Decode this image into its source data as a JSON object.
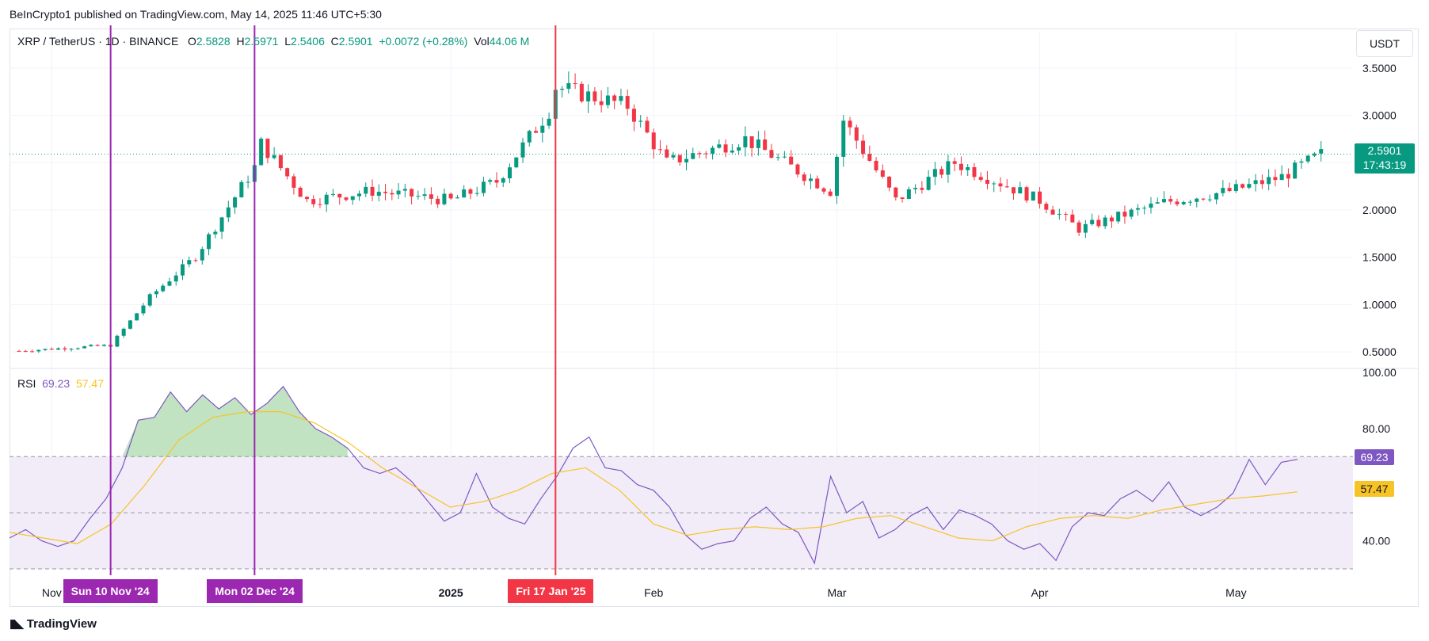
{
  "header": {
    "published_note": "BeInCrypto1 published on TradingView.com, May 14, 2025 11:46 UTC+5:30"
  },
  "legend": {
    "symbol": "XRP / TetherUS · 1D · BINANCE",
    "open_label": "O",
    "open": "2.5828",
    "high_label": "H",
    "high": "2.5971",
    "low_label": "L",
    "low": "2.5406",
    "close_label": "C",
    "close": "2.5901",
    "change": "+0.0072 (+0.28%)",
    "vol_label": "Vol",
    "vol": "44.06 M"
  },
  "currency_button": "USDT",
  "price_tag": {
    "price": "2.5901",
    "countdown": "17:43:19"
  },
  "rsi_legend": {
    "label": "RSI",
    "rsi": "69.23",
    "ma": "57.47"
  },
  "rsi_tags": {
    "rsi": "69.23",
    "ma": "57.47"
  },
  "markers": [
    {
      "label": "Sun 10 Nov '24",
      "color": "#9c27b0"
    },
    {
      "label": "Mon 02 Dec '24",
      "color": "#9c27b0"
    },
    {
      "label": "Fri 17 Jan '25",
      "color": "#f23645"
    }
  ],
  "brand": {
    "name": "TradingView"
  },
  "colors": {
    "up": "#089981",
    "down": "#f23645",
    "rsi": "#7e57c2",
    "rsi_ma": "#f7c325",
    "band": "#ede7f6"
  },
  "chart_data": [
    {
      "type": "candlestick",
      "title": "XRP / TetherUS · 1D · BINANCE",
      "x_tick_labels": [
        "Nov",
        "2025",
        "Feb",
        "Mar",
        "Apr",
        "May"
      ],
      "y_tick_labels": [
        "3.5000",
        "3.0000",
        "2.5000",
        "2.0000",
        "1.5000",
        "1.0000",
        "0.5000"
      ],
      "ylim": [
        0.35,
        3.8
      ],
      "last_price": 2.5901,
      "key_points": [
        {
          "date": "2024-10-27",
          "close": 0.51
        },
        {
          "date": "2024-11-10",
          "close": 0.57
        },
        {
          "date": "2024-11-16",
          "close": 1.08
        },
        {
          "date": "2024-11-23",
          "close": 1.51
        },
        {
          "date": "2024-12-02",
          "close": 2.45
        },
        {
          "date": "2024-12-03",
          "close": 2.7
        },
        {
          "date": "2024-12-10",
          "close": 2.1
        },
        {
          "date": "2024-12-20",
          "close": 2.2
        },
        {
          "date": "2025-01-01",
          "close": 2.1
        },
        {
          "date": "2025-01-08",
          "close": 2.3
        },
        {
          "date": "2025-01-16",
          "close": 3.05
        },
        {
          "date": "2025-01-17",
          "close": 3.3
        },
        {
          "date": "2025-01-28",
          "close": 3.1
        },
        {
          "date": "2025-02-03",
          "close": 2.5
        },
        {
          "date": "2025-02-15",
          "close": 2.75
        },
        {
          "date": "2025-02-28",
          "close": 2.2
        },
        {
          "date": "2025-03-02",
          "close": 2.95
        },
        {
          "date": "2025-03-10",
          "close": 2.1
        },
        {
          "date": "2025-03-19",
          "close": 2.5
        },
        {
          "date": "2025-04-01",
          "close": 2.1
        },
        {
          "date": "2025-04-07",
          "close": 1.8
        },
        {
          "date": "2025-04-20",
          "close": 2.08
        },
        {
          "date": "2025-04-30",
          "close": 2.2
        },
        {
          "date": "2025-05-08",
          "close": 2.35
        },
        {
          "date": "2025-05-14",
          "close": 2.59
        }
      ]
    },
    {
      "type": "line",
      "title": "RSI",
      "y_tick_labels": [
        "100.00",
        "80.00",
        "60.00",
        "40.00"
      ],
      "ylim": [
        30,
        100
      ],
      "band": [
        30,
        70
      ],
      "midline": 50,
      "series": [
        {
          "name": "RSI",
          "values": [
            41,
            44,
            40,
            38,
            40,
            48,
            55,
            66,
            83,
            84,
            93,
            86,
            92,
            87,
            91,
            85,
            89,
            95,
            86,
            80,
            77,
            73,
            66,
            64,
            66,
            61,
            54,
            47,
            50,
            64,
            52,
            48,
            46,
            55,
            63,
            73,
            77,
            66,
            65,
            60,
            58,
            52,
            42,
            37,
            39,
            40,
            48,
            52,
            46,
            43,
            32,
            63,
            50,
            54,
            41,
            44,
            49,
            52,
            44,
            51,
            49,
            46,
            40,
            37,
            39,
            33,
            45,
            50,
            49,
            55,
            58,
            54,
            61,
            52,
            49,
            52,
            57,
            69,
            60,
            68,
            69
          ]
        },
        {
          "name": "RSI MA",
          "values": [
            43,
            41,
            39,
            46,
            60,
            76,
            84,
            86,
            86,
            82,
            75,
            66,
            59,
            52,
            54,
            58,
            64,
            66,
            58,
            46,
            42,
            44,
            45,
            44,
            45,
            48,
            49,
            45,
            41,
            40,
            45,
            48,
            49,
            48,
            51,
            53,
            55,
            56,
            57.47
          ]
        }
      ]
    }
  ]
}
